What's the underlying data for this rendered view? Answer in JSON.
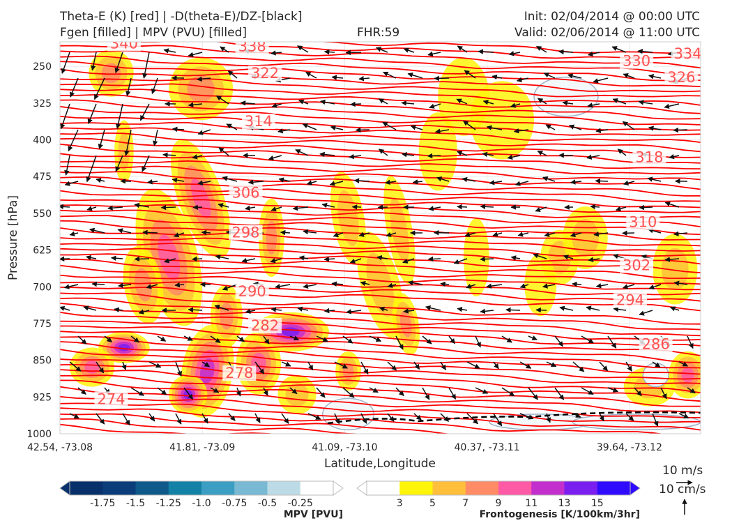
{
  "header": {
    "title_line1": "Theta-E (K) [red] | -D(theta-E)/DZ-[black]",
    "title_line2": "Fgen [filled] | MPV (PVU) [filled]",
    "fhr": "FHR:59",
    "init": "Init: 02/04/2014 @ 00:00 UTC",
    "valid": "Valid: 02/06/2014 @ 11:00 UTC"
  },
  "chart_data": {
    "type": "cross-section",
    "ylabel": "Pressure [hPa]",
    "xlabel": "Latitude,Longitude",
    "ylim": [
      1000,
      200
    ],
    "yticks": [
      250,
      325,
      400,
      475,
      550,
      625,
      700,
      775,
      850,
      925,
      1000
    ],
    "xticks": [
      "42.54, -73.08",
      "41.81, -73.09",
      "41.09, -73.10",
      "40.37, -73.11",
      "39.64, -73.12"
    ],
    "theta_e_color": "#ff0000",
    "theta_e_labels": [
      {
        "value": "340",
        "x": 0.1,
        "p": 209
      },
      {
        "value": "338",
        "x": 0.3,
        "p": 215
      },
      {
        "value": "334",
        "x": 0.98,
        "p": 230
      },
      {
        "value": "330",
        "x": 0.9,
        "p": 245
      },
      {
        "value": "326",
        "x": 0.97,
        "p": 278
      },
      {
        "value": "322",
        "x": 0.32,
        "p": 270
      },
      {
        "value": "318",
        "x": 0.92,
        "p": 441
      },
      {
        "value": "314",
        "x": 0.31,
        "p": 368
      },
      {
        "value": "310",
        "x": 0.91,
        "p": 574
      },
      {
        "value": "306",
        "x": 0.29,
        "p": 514
      },
      {
        "value": "302",
        "x": 0.9,
        "p": 662
      },
      {
        "value": "298",
        "x": 0.29,
        "p": 595
      },
      {
        "value": "294",
        "x": 0.89,
        "p": 733
      },
      {
        "value": "290",
        "x": 0.3,
        "p": 715
      },
      {
        "value": "286",
        "x": 0.93,
        "p": 823
      },
      {
        "value": "282",
        "x": 0.32,
        "p": 785
      },
      {
        "value": "278",
        "x": 0.28,
        "p": 882
      },
      {
        "value": "274",
        "x": 0.08,
        "p": 935
      }
    ],
    "mpv_colorbar": {
      "title": "MPV [PVU]",
      "ticks": [
        "-1.75",
        "-1.5",
        "-1.25",
        "-1.0",
        "-0.75",
        "-0.5",
        "-0.25"
      ],
      "colors": [
        "#08306b",
        "#0b3d7a",
        "#0f5a8a",
        "#1482a6",
        "#3c9ec2",
        "#79b9d4",
        "#bcdbe6",
        "#ffffff"
      ]
    },
    "fgen_colorbar": {
      "title": "Frontogenesis [K/100km/3hr]",
      "ticks": [
        "3",
        "5",
        "7",
        "9",
        "11",
        "13",
        "15"
      ],
      "colors": [
        "#ffffff",
        "#fff50a",
        "#ffbf3b",
        "#ff8c66",
        "#ff5aa5",
        "#c22fcc",
        "#7a1ff0",
        "#2f0bff"
      ]
    },
    "quiver_keys": [
      "10 m/s",
      "10 cm/s"
    ]
  }
}
